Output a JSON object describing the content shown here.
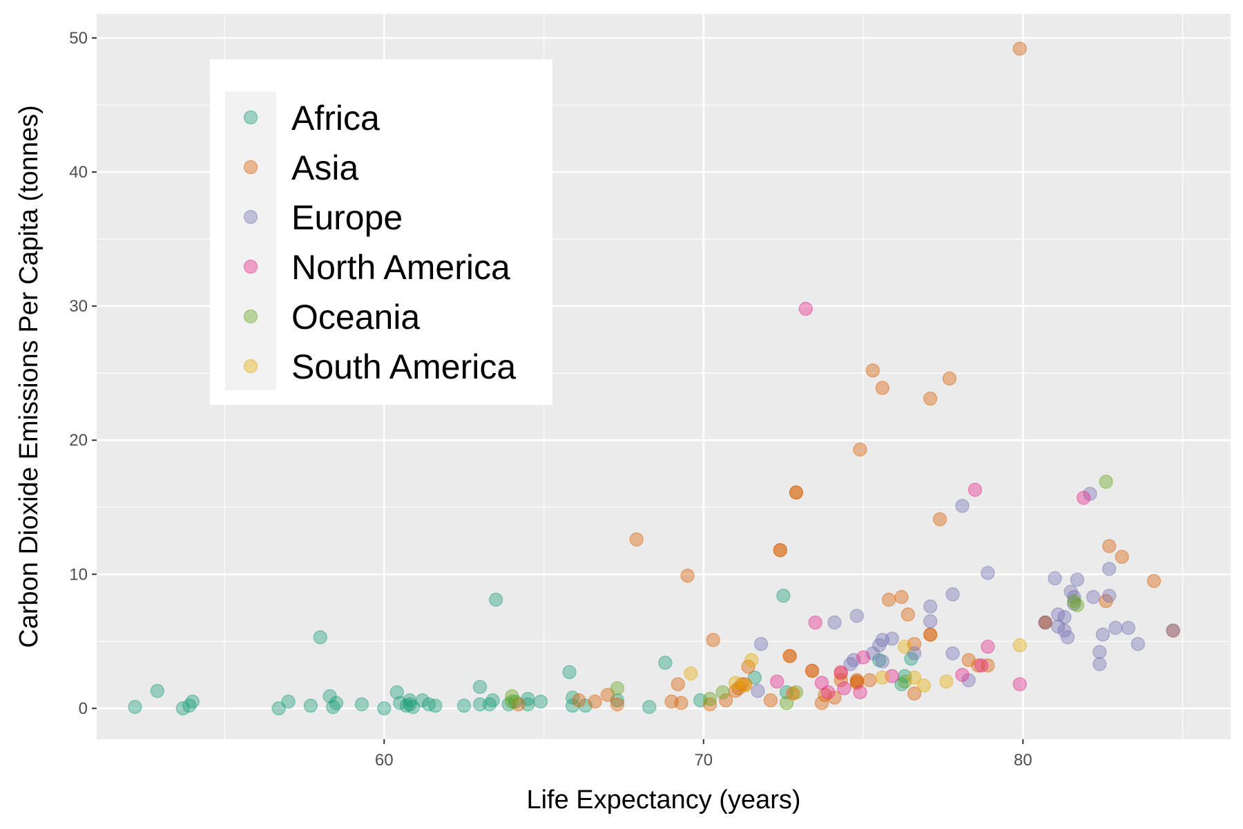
{
  "chart_data": {
    "type": "scatter",
    "xlabel": "Life Expectancy (years)",
    "ylabel": "Carbon Dioxide Emissions Per Capita (tonnes)",
    "xlim": [
      51,
      86.5
    ],
    "ylim": [
      -2.3,
      51.8
    ],
    "x_ticks": [
      60,
      70,
      80
    ],
    "y_ticks": [
      0,
      10,
      20,
      30,
      40,
      50
    ],
    "x_tick_labels": [
      "60",
      "70",
      "80"
    ],
    "y_tick_labels": [
      "0",
      "10",
      "20",
      "30",
      "40",
      "50"
    ],
    "grid": true,
    "legend_position": "top-left",
    "series": [
      {
        "name": "Africa",
        "color": "#1b9e77",
        "points": [
          [
            52.2,
            0.1
          ],
          [
            52.9,
            1.3
          ],
          [
            53.7,
            0.0
          ],
          [
            53.9,
            0.2
          ],
          [
            54.0,
            0.5
          ],
          [
            56.7,
            0.0
          ],
          [
            57.0,
            0.5
          ],
          [
            57.7,
            0.2
          ],
          [
            58.0,
            5.3
          ],
          [
            58.3,
            0.9
          ],
          [
            58.4,
            0.1
          ],
          [
            58.5,
            0.4
          ],
          [
            59.3,
            0.3
          ],
          [
            60.0,
            0.0
          ],
          [
            60.4,
            1.2
          ],
          [
            60.5,
            0.4
          ],
          [
            60.7,
            0.2
          ],
          [
            60.8,
            0.6
          ],
          [
            60.8,
            0.3
          ],
          [
            60.9,
            0.1
          ],
          [
            61.2,
            0.6
          ],
          [
            61.4,
            0.3
          ],
          [
            61.6,
            0.2
          ],
          [
            62.5,
            0.2
          ],
          [
            63.0,
            1.6
          ],
          [
            63.0,
            0.3
          ],
          [
            63.3,
            0.3
          ],
          [
            63.4,
            0.6
          ],
          [
            63.5,
            8.1
          ],
          [
            63.9,
            0.3
          ],
          [
            64.1,
            0.5
          ],
          [
            64.5,
            0.7
          ],
          [
            64.5,
            0.3
          ],
          [
            64.9,
            0.5
          ],
          [
            65.8,
            2.7
          ],
          [
            65.9,
            0.8
          ],
          [
            65.9,
            0.2
          ],
          [
            66.3,
            0.2
          ],
          [
            67.3,
            0.6
          ],
          [
            68.3,
            0.1
          ],
          [
            68.8,
            3.4
          ],
          [
            69.9,
            0.6
          ],
          [
            71.6,
            2.3
          ],
          [
            72.5,
            8.4
          ],
          [
            72.6,
            1.2
          ],
          [
            75.5,
            3.6
          ],
          [
            76.2,
            1.8
          ],
          [
            76.3,
            2.4
          ],
          [
            76.5,
            3.7
          ]
        ]
      },
      {
        "name": "Asia",
        "color": "#d95f02",
        "points": [
          [
            79.9,
            49.2
          ],
          [
            75.3,
            25.2
          ],
          [
            77.7,
            24.6
          ],
          [
            75.6,
            23.9
          ],
          [
            77.1,
            23.1
          ],
          [
            74.9,
            19.3
          ],
          [
            72.9,
            16.1
          ],
          [
            72.9,
            16.1
          ],
          [
            77.4,
            14.1
          ],
          [
            67.9,
            12.6
          ],
          [
            82.7,
            12.1
          ],
          [
            72.4,
            11.8
          ],
          [
            72.4,
            11.8
          ],
          [
            83.1,
            11.3
          ],
          [
            69.5,
            9.9
          ],
          [
            84.1,
            9.5
          ],
          [
            76.2,
            8.3
          ],
          [
            75.8,
            8.1
          ],
          [
            82.6,
            8.0
          ],
          [
            76.4,
            7.0
          ],
          [
            80.7,
            6.4
          ],
          [
            80.7,
            6.4
          ],
          [
            84.7,
            5.8
          ],
          [
            77.1,
            5.5
          ],
          [
            77.1,
            5.5
          ],
          [
            70.3,
            5.1
          ],
          [
            76.6,
            4.8
          ],
          [
            72.7,
            3.9
          ],
          [
            72.7,
            3.9
          ],
          [
            78.3,
            3.6
          ],
          [
            78.6,
            3.2
          ],
          [
            78.9,
            3.2
          ],
          [
            71.4,
            3.1
          ],
          [
            73.4,
            2.8
          ],
          [
            73.4,
            2.8
          ],
          [
            74.3,
            2.6
          ],
          [
            74.3,
            2.1
          ],
          [
            74.8,
            2.1
          ],
          [
            74.8,
            2.0
          ],
          [
            74.8,
            1.9
          ],
          [
            75.2,
            2.1
          ],
          [
            69.2,
            1.8
          ],
          [
            71.2,
            1.8
          ],
          [
            71.3,
            1.8
          ],
          [
            71.1,
            1.5
          ],
          [
            71.0,
            1.3
          ],
          [
            67.0,
            1.0
          ],
          [
            73.8,
            1.0
          ],
          [
            74.1,
            0.8
          ],
          [
            76.6,
            1.1
          ],
          [
            70.7,
            0.6
          ],
          [
            72.1,
            0.6
          ],
          [
            66.1,
            0.6
          ],
          [
            66.6,
            0.5
          ],
          [
            69.0,
            0.5
          ],
          [
            69.3,
            0.4
          ],
          [
            73.7,
            0.4
          ],
          [
            64.2,
            0.3
          ],
          [
            67.3,
            0.3
          ],
          [
            70.2,
            0.3
          ]
        ]
      },
      {
        "name": "Europe",
        "color": "#7570b3",
        "points": [
          [
            82.1,
            16.0
          ],
          [
            78.1,
            15.1
          ],
          [
            78.9,
            10.1
          ],
          [
            82.7,
            10.4
          ],
          [
            81.0,
            9.7
          ],
          [
            81.7,
            9.6
          ],
          [
            81.5,
            8.7
          ],
          [
            81.6,
            8.3
          ],
          [
            82.2,
            8.3
          ],
          [
            82.7,
            8.4
          ],
          [
            77.8,
            8.5
          ],
          [
            77.1,
            7.6
          ],
          [
            81.6,
            7.8
          ],
          [
            81.1,
            7.0
          ],
          [
            81.3,
            6.8
          ],
          [
            74.1,
            6.4
          ],
          [
            77.1,
            6.5
          ],
          [
            80.7,
            6.4
          ],
          [
            81.1,
            6.1
          ],
          [
            81.3,
            5.8
          ],
          [
            83.3,
            6.0
          ],
          [
            82.9,
            6.0
          ],
          [
            84.7,
            5.8
          ],
          [
            81.4,
            5.3
          ],
          [
            82.5,
            5.5
          ],
          [
            74.8,
            6.9
          ],
          [
            75.6,
            5.1
          ],
          [
            75.9,
            5.2
          ],
          [
            75.5,
            4.7
          ],
          [
            75.3,
            4.1
          ],
          [
            76.6,
            4.1
          ],
          [
            77.8,
            4.1
          ],
          [
            82.4,
            4.2
          ],
          [
            83.6,
            4.8
          ],
          [
            71.8,
            4.8
          ],
          [
            74.7,
            3.6
          ],
          [
            74.6,
            3.3
          ],
          [
            75.6,
            3.5
          ],
          [
            82.4,
            3.3
          ],
          [
            78.3,
            2.1
          ],
          [
            71.7,
            1.3
          ]
        ]
      },
      {
        "name": "North America",
        "color": "#e7298a",
        "points": [
          [
            73.2,
            29.8
          ],
          [
            78.5,
            16.3
          ],
          [
            81.9,
            15.7
          ],
          [
            73.5,
            6.4
          ],
          [
            75.0,
            3.8
          ],
          [
            78.9,
            4.6
          ],
          [
            72.3,
            2.0
          ],
          [
            73.7,
            1.9
          ],
          [
            73.9,
            1.2
          ],
          [
            74.3,
            2.7
          ],
          [
            74.4,
            1.5
          ],
          [
            74.9,
            1.2
          ],
          [
            75.9,
            2.4
          ],
          [
            78.1,
            2.5
          ],
          [
            78.7,
            3.2
          ],
          [
            79.9,
            1.8
          ],
          [
            72.8,
            1.1
          ]
        ]
      },
      {
        "name": "Oceania",
        "color": "#66a61e",
        "points": [
          [
            82.6,
            16.9
          ],
          [
            81.7,
            7.7
          ],
          [
            81.6,
            8.0
          ],
          [
            67.3,
            1.5
          ],
          [
            64.0,
            0.9
          ],
          [
            64.0,
            0.5
          ],
          [
            70.6,
            1.2
          ],
          [
            72.9,
            1.2
          ],
          [
            70.2,
            0.7
          ],
          [
            72.6,
            0.4
          ],
          [
            76.3,
            2.0
          ]
        ]
      },
      {
        "name": "South America",
        "color": "#e6ab02",
        "points": [
          [
            79.9,
            4.7
          ],
          [
            76.3,
            4.6
          ],
          [
            71.5,
            3.6
          ],
          [
            69.6,
            2.6
          ],
          [
            71.0,
            1.9
          ],
          [
            72.8,
            1.1
          ],
          [
            75.6,
            2.3
          ],
          [
            76.6,
            2.3
          ],
          [
            76.9,
            1.7
          ],
          [
            77.6,
            2.0
          ],
          [
            71.3,
            1.7
          ]
        ]
      }
    ]
  }
}
